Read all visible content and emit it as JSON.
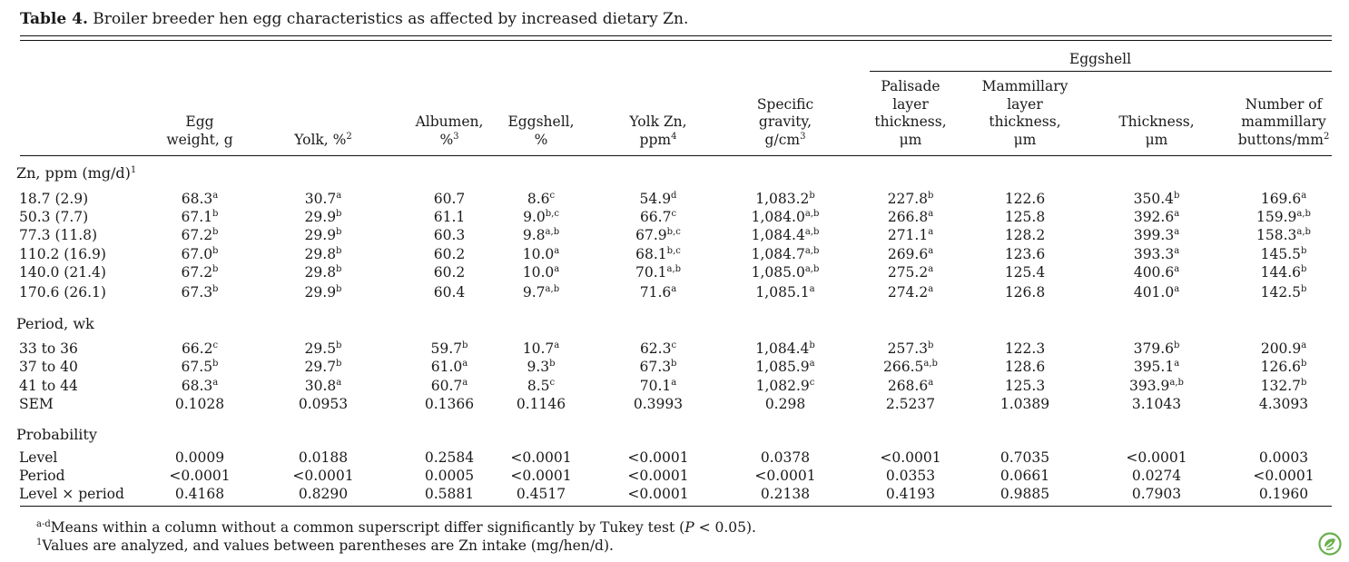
{
  "caption": {
    "label": "Table 4.",
    "text": "Broiler breeder hen egg characteristics as affected by increased dietary Zn."
  },
  "spanner": "Eggshell",
  "columns": [
    {
      "lines": [
        "Egg",
        "weight, g"
      ],
      "sup": ""
    },
    {
      "lines": [
        "Yolk, %"
      ],
      "sup": "2"
    },
    {
      "lines": [
        "Albumen,",
        "%"
      ],
      "sup": "3"
    },
    {
      "lines": [
        "Eggshell,",
        "%"
      ],
      "sup": ""
    },
    {
      "lines": [
        "Yolk Zn,",
        "ppm"
      ],
      "sup": "4"
    },
    {
      "lines": [
        "Specific",
        "gravity,",
        "g/cm"
      ],
      "sup": "3"
    },
    {
      "lines": [
        "Palisade",
        "layer",
        "thickness,",
        "μm"
      ],
      "sup": ""
    },
    {
      "lines": [
        "Mammillary",
        "layer",
        "thickness,",
        "μm"
      ],
      "sup": ""
    },
    {
      "lines": [
        "Thickness,",
        "μm"
      ],
      "sup": ""
    },
    {
      "lines": [
        "Number of",
        "mammillary",
        "buttons/mm"
      ],
      "sup": "2"
    }
  ],
  "sections": [
    {
      "title": "Zn, ppm (mg/d)",
      "title_sup": "1",
      "rows": [
        {
          "label": "18.7 (2.9)",
          "cells": [
            [
              "68.3",
              "a"
            ],
            [
              "30.7",
              "a"
            ],
            [
              "60.7",
              ""
            ],
            [
              "8.6",
              "c"
            ],
            [
              "54.9",
              "d"
            ],
            [
              "1,083.2",
              "b"
            ],
            [
              "227.8",
              "b"
            ],
            [
              "122.6",
              ""
            ],
            [
              "350.4",
              "b"
            ],
            [
              "169.6",
              "a"
            ]
          ]
        },
        {
          "label": "50.3 (7.7)",
          "cells": [
            [
              "67.1",
              "b"
            ],
            [
              "29.9",
              "b"
            ],
            [
              "61.1",
              ""
            ],
            [
              "9.0",
              "b,c"
            ],
            [
              "66.7",
              "c"
            ],
            [
              "1,084.0",
              "a,b"
            ],
            [
              "266.8",
              "a"
            ],
            [
              "125.8",
              ""
            ],
            [
              "392.6",
              "a"
            ],
            [
              "159.9",
              "a,b"
            ]
          ]
        },
        {
          "label": "77.3 (11.8)",
          "cells": [
            [
              "67.2",
              "b"
            ],
            [
              "29.9",
              "b"
            ],
            [
              "60.3",
              ""
            ],
            [
              "9.8",
              "a,b"
            ],
            [
              "67.9",
              "b,c"
            ],
            [
              "1,084.4",
              "a,b"
            ],
            [
              "271.1",
              "a"
            ],
            [
              "128.2",
              ""
            ],
            [
              "399.3",
              "a"
            ],
            [
              "158.3",
              "a,b"
            ]
          ]
        },
        {
          "label": "110.2 (16.9)",
          "cells": [
            [
              "67.0",
              "b"
            ],
            [
              "29.8",
              "b"
            ],
            [
              "60.2",
              ""
            ],
            [
              "10.0",
              "a"
            ],
            [
              "68.1",
              "b,c"
            ],
            [
              "1,084.7",
              "a,b"
            ],
            [
              "269.6",
              "a"
            ],
            [
              "123.6",
              ""
            ],
            [
              "393.3",
              "a"
            ],
            [
              "145.5",
              "b"
            ]
          ]
        },
        {
          "label": "140.0 (21.4)",
          "cells": [
            [
              "67.2",
              "b"
            ],
            [
              "29.8",
              "b"
            ],
            [
              "60.2",
              ""
            ],
            [
              "10.0",
              "a"
            ],
            [
              "70.1",
              "a,b"
            ],
            [
              "1,085.0",
              "a,b"
            ],
            [
              "275.2",
              "a"
            ],
            [
              "125.4",
              ""
            ],
            [
              "400.6",
              "a"
            ],
            [
              "144.6",
              "b"
            ]
          ]
        },
        {
          "label": "170.6 (26.1)",
          "cells": [
            [
              "67.3",
              "b"
            ],
            [
              "29.9",
              "b"
            ],
            [
              "60.4",
              ""
            ],
            [
              "9.7",
              "a,b"
            ],
            [
              "71.6",
              "a"
            ],
            [
              "1,085.1",
              "a"
            ],
            [
              "274.2",
              "a"
            ],
            [
              "126.8",
              ""
            ],
            [
              "401.0",
              "a"
            ],
            [
              "142.5",
              "b"
            ]
          ]
        }
      ]
    },
    {
      "title": "Period, wk",
      "title_sup": "",
      "rows": [
        {
          "label": "33 to 36",
          "cells": [
            [
              "66.2",
              "c"
            ],
            [
              "29.5",
              "b"
            ],
            [
              "59.7",
              "b"
            ],
            [
              "10.7",
              "a"
            ],
            [
              "62.3",
              "c"
            ],
            [
              "1,084.4",
              "b"
            ],
            [
              "257.3",
              "b"
            ],
            [
              "122.3",
              ""
            ],
            [
              "379.6",
              "b"
            ],
            [
              "200.9",
              "a"
            ]
          ]
        },
        {
          "label": "37 to 40",
          "cells": [
            [
              "67.5",
              "b"
            ],
            [
              "29.7",
              "b"
            ],
            [
              "61.0",
              "a"
            ],
            [
              "9.3",
              "b"
            ],
            [
              "67.3",
              "b"
            ],
            [
              "1,085.9",
              "a"
            ],
            [
              "266.5",
              "a,b"
            ],
            [
              "128.6",
              ""
            ],
            [
              "395.1",
              "a"
            ],
            [
              "126.6",
              "b"
            ]
          ]
        },
        {
          "label": "41 to 44",
          "cells": [
            [
              "68.3",
              "a"
            ],
            [
              "30.8",
              "a"
            ],
            [
              "60.7",
              "a"
            ],
            [
              "8.5",
              "c"
            ],
            [
              "70.1",
              "a"
            ],
            [
              "1,082.9",
              "c"
            ],
            [
              "268.6",
              "a"
            ],
            [
              "125.3",
              ""
            ],
            [
              "393.9",
              "a,b"
            ],
            [
              "132.7",
              "b"
            ]
          ]
        },
        {
          "label": "SEM",
          "cells": [
            [
              "0.1028",
              ""
            ],
            [
              "0.0953",
              ""
            ],
            [
              "0.1366",
              ""
            ],
            [
              "0.1146",
              ""
            ],
            [
              "0.3993",
              ""
            ],
            [
              "0.298",
              ""
            ],
            [
              "2.5237",
              ""
            ],
            [
              "1.0389",
              ""
            ],
            [
              "3.1043",
              ""
            ],
            [
              "4.3093",
              ""
            ]
          ]
        }
      ]
    },
    {
      "title": "Probability",
      "title_sup": "",
      "rows": [
        {
          "label": "Level",
          "cells": [
            [
              "0.0009",
              ""
            ],
            [
              "0.0188",
              ""
            ],
            [
              "0.2584",
              ""
            ],
            [
              "<0.0001",
              ""
            ],
            [
              "<0.0001",
              ""
            ],
            [
              "0.0378",
              ""
            ],
            [
              "<0.0001",
              ""
            ],
            [
              "0.7035",
              ""
            ],
            [
              "<0.0001",
              ""
            ],
            [
              "0.0003",
              ""
            ]
          ]
        },
        {
          "label": "Period",
          "cells": [
            [
              "<0.0001",
              ""
            ],
            [
              "<0.0001",
              ""
            ],
            [
              "0.0005",
              ""
            ],
            [
              "<0.0001",
              ""
            ],
            [
              "<0.0001",
              ""
            ],
            [
              "<0.0001",
              ""
            ],
            [
              "0.0353",
              ""
            ],
            [
              "0.0661",
              ""
            ],
            [
              "0.0274",
              ""
            ],
            [
              "<0.0001",
              ""
            ]
          ]
        },
        {
          "label": "Level × period",
          "cells": [
            [
              "0.4168",
              ""
            ],
            [
              "0.8290",
              ""
            ],
            [
              "0.5881",
              ""
            ],
            [
              "0.4517",
              ""
            ],
            [
              "<0.0001",
              ""
            ],
            [
              "0.2138",
              ""
            ],
            [
              "0.4193",
              ""
            ],
            [
              "0.9885",
              ""
            ],
            [
              "0.7903",
              ""
            ],
            [
              "0.1960",
              ""
            ]
          ]
        }
      ]
    }
  ],
  "footnotes": [
    {
      "sup": "a-d",
      "text": "Means within a column without a common superscript differ significantly by Tukey test (P < 0.05)."
    },
    {
      "sup": "1",
      "text": "Values are analyzed, and values between parentheses are Zn intake (mg/hen/d)."
    }
  ],
  "logo_icon": "journal-leaf-icon",
  "accent_color": "#6ab04c"
}
